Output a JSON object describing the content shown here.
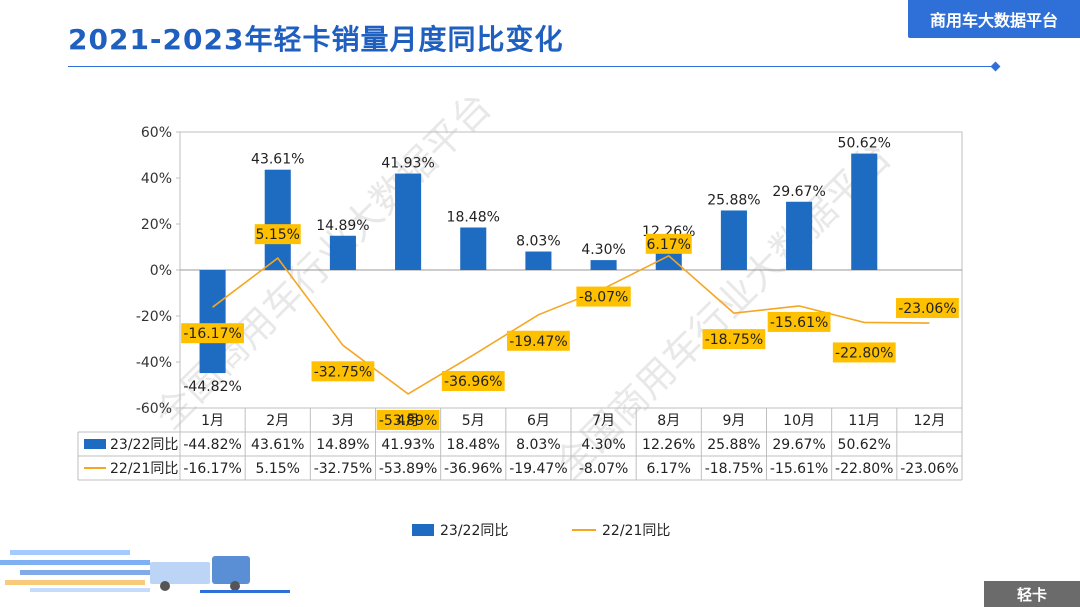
{
  "header": {
    "title": "2021-2023年轻卡销量月度同比变化",
    "brand": "商用车大数据平台",
    "bottom_tag": "轻卡",
    "watermark": "全国商用车行业大数据平台"
  },
  "chart_data": {
    "type": "bar",
    "title": "2021-2023年轻卡销量月度同比变化",
    "categories": [
      "1月",
      "2月",
      "3月",
      "4月",
      "5月",
      "6月",
      "7月",
      "8月",
      "9月",
      "10月",
      "11月",
      "12月"
    ],
    "ylim": [
      -60,
      60
    ],
    "yticks": [
      60,
      40,
      20,
      0,
      -20,
      -40,
      -60
    ],
    "ytick_labels": [
      "60%",
      "40%",
      "20%",
      "0%",
      "-20%",
      "-40%",
      "-60%"
    ],
    "series": [
      {
        "name": "23/22同比",
        "kind": "bar",
        "color": "#1e6cc1",
        "values": [
          -44.82,
          43.61,
          14.89,
          41.93,
          18.48,
          8.03,
          4.3,
          12.26,
          25.88,
          29.67,
          50.62,
          null
        ],
        "labels": [
          "-44.82%",
          "43.61%",
          "14.89%",
          "41.93%",
          "18.48%",
          "8.03%",
          "4.30%",
          "12.26%",
          "25.88%",
          "29.67%",
          "50.62%",
          ""
        ]
      },
      {
        "name": "22/21同比",
        "kind": "line",
        "color": "#f5a623",
        "label_bg": "#ffc000",
        "values": [
          -16.17,
          5.15,
          -32.75,
          -53.89,
          -36.96,
          -19.47,
          -8.07,
          6.17,
          -18.75,
          -15.61,
          -22.8,
          -23.06
        ],
        "labels": [
          "-16.17%",
          "5.15%",
          "-32.75%",
          "-53.89%",
          "-36.96%",
          "-19.47%",
          "-8.07%",
          "6.17%",
          "-18.75%",
          "-15.61%",
          "-22.80%",
          "-23.06%"
        ]
      }
    ],
    "legend": [
      "23/22同比",
      "22/21同比"
    ],
    "legend_position": "bottom"
  }
}
